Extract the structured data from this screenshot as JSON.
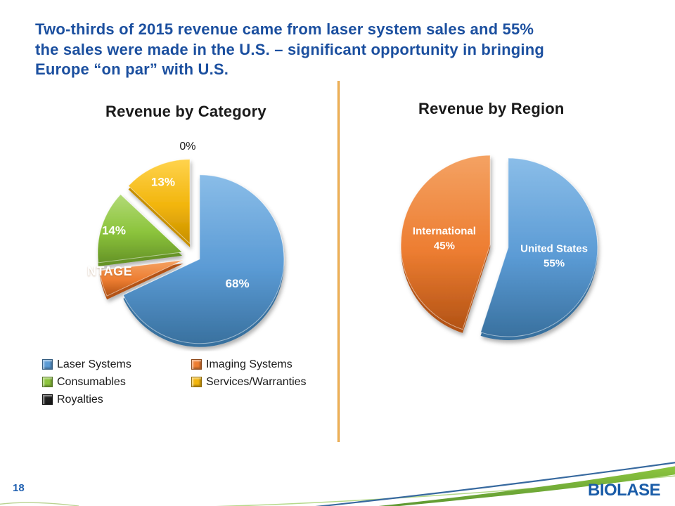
{
  "slide": {
    "title_lines": [
      "Two-thirds of 2015 revenue came from laser system sales and 55%",
      "the sales were made in the U.S. – significant opportunity in bringing",
      "Europe “on par” with U.S."
    ],
    "page_number": "18",
    "logo_text": "BIOLASE",
    "colors": {
      "title_blue": "#1b4f9f",
      "divider_orange": "#e5a13c",
      "logo_blue": "#1a5ca8",
      "swoosh_green": "#76b82a",
      "swoosh_blue": "#37699f"
    }
  },
  "chart_data": [
    {
      "type": "pie",
      "title": "Revenue by Category",
      "unit": "%",
      "legend_position": "bottom-left",
      "overlay_text": "NTAGE",
      "slices": [
        {
          "label": "Laser Systems",
          "value": 68,
          "data_label": "68%",
          "color": "#5b9bd5",
          "light": "#8abde8",
          "dark": "#39719f"
        },
        {
          "label": "Imaging Systems",
          "value": 5,
          "data_label": "",
          "color": "#ed7d31",
          "light": "#f4a263",
          "dark": "#b35315"
        },
        {
          "label": "Consumables",
          "value": 14,
          "data_label": "14%",
          "color": "#8cc43c",
          "light": "#b2da77",
          "dark": "#669427"
        },
        {
          "label": "Services/Warranties",
          "value": 13,
          "data_label": "13%",
          "color": "#f2b50c",
          "light": "#ffd34d",
          "dark": "#c78f00"
        },
        {
          "label": "Royalties",
          "value": 0,
          "data_label": "0%",
          "color": "#1f1f1f",
          "light": "#4a4a4a",
          "dark": "#000000",
          "label_outside": true
        }
      ]
    },
    {
      "type": "pie",
      "title": "Revenue by Region",
      "unit": "%",
      "slices": [
        {
          "label": "United States",
          "value": 55,
          "data_label": "United States\n55%",
          "color": "#5b9bd5",
          "light": "#8abde8",
          "dark": "#39719f"
        },
        {
          "label": "International",
          "value": 45,
          "data_label": "International\n45%",
          "color": "#ed7d31",
          "light": "#f4a263",
          "dark": "#b35315"
        }
      ]
    }
  ],
  "legend": {
    "columns": [
      [
        {
          "label": "Laser Systems",
          "color": "#5b9bd5"
        },
        {
          "label": "Consumables",
          "color": "#8cc43c"
        },
        {
          "label": "Royalties",
          "color": "#1f1f1f"
        }
      ],
      [
        {
          "label": "Imaging Systems",
          "color": "#ed7d31"
        },
        {
          "label": "Services/Warranties",
          "color": "#f2b50c"
        }
      ]
    ]
  }
}
